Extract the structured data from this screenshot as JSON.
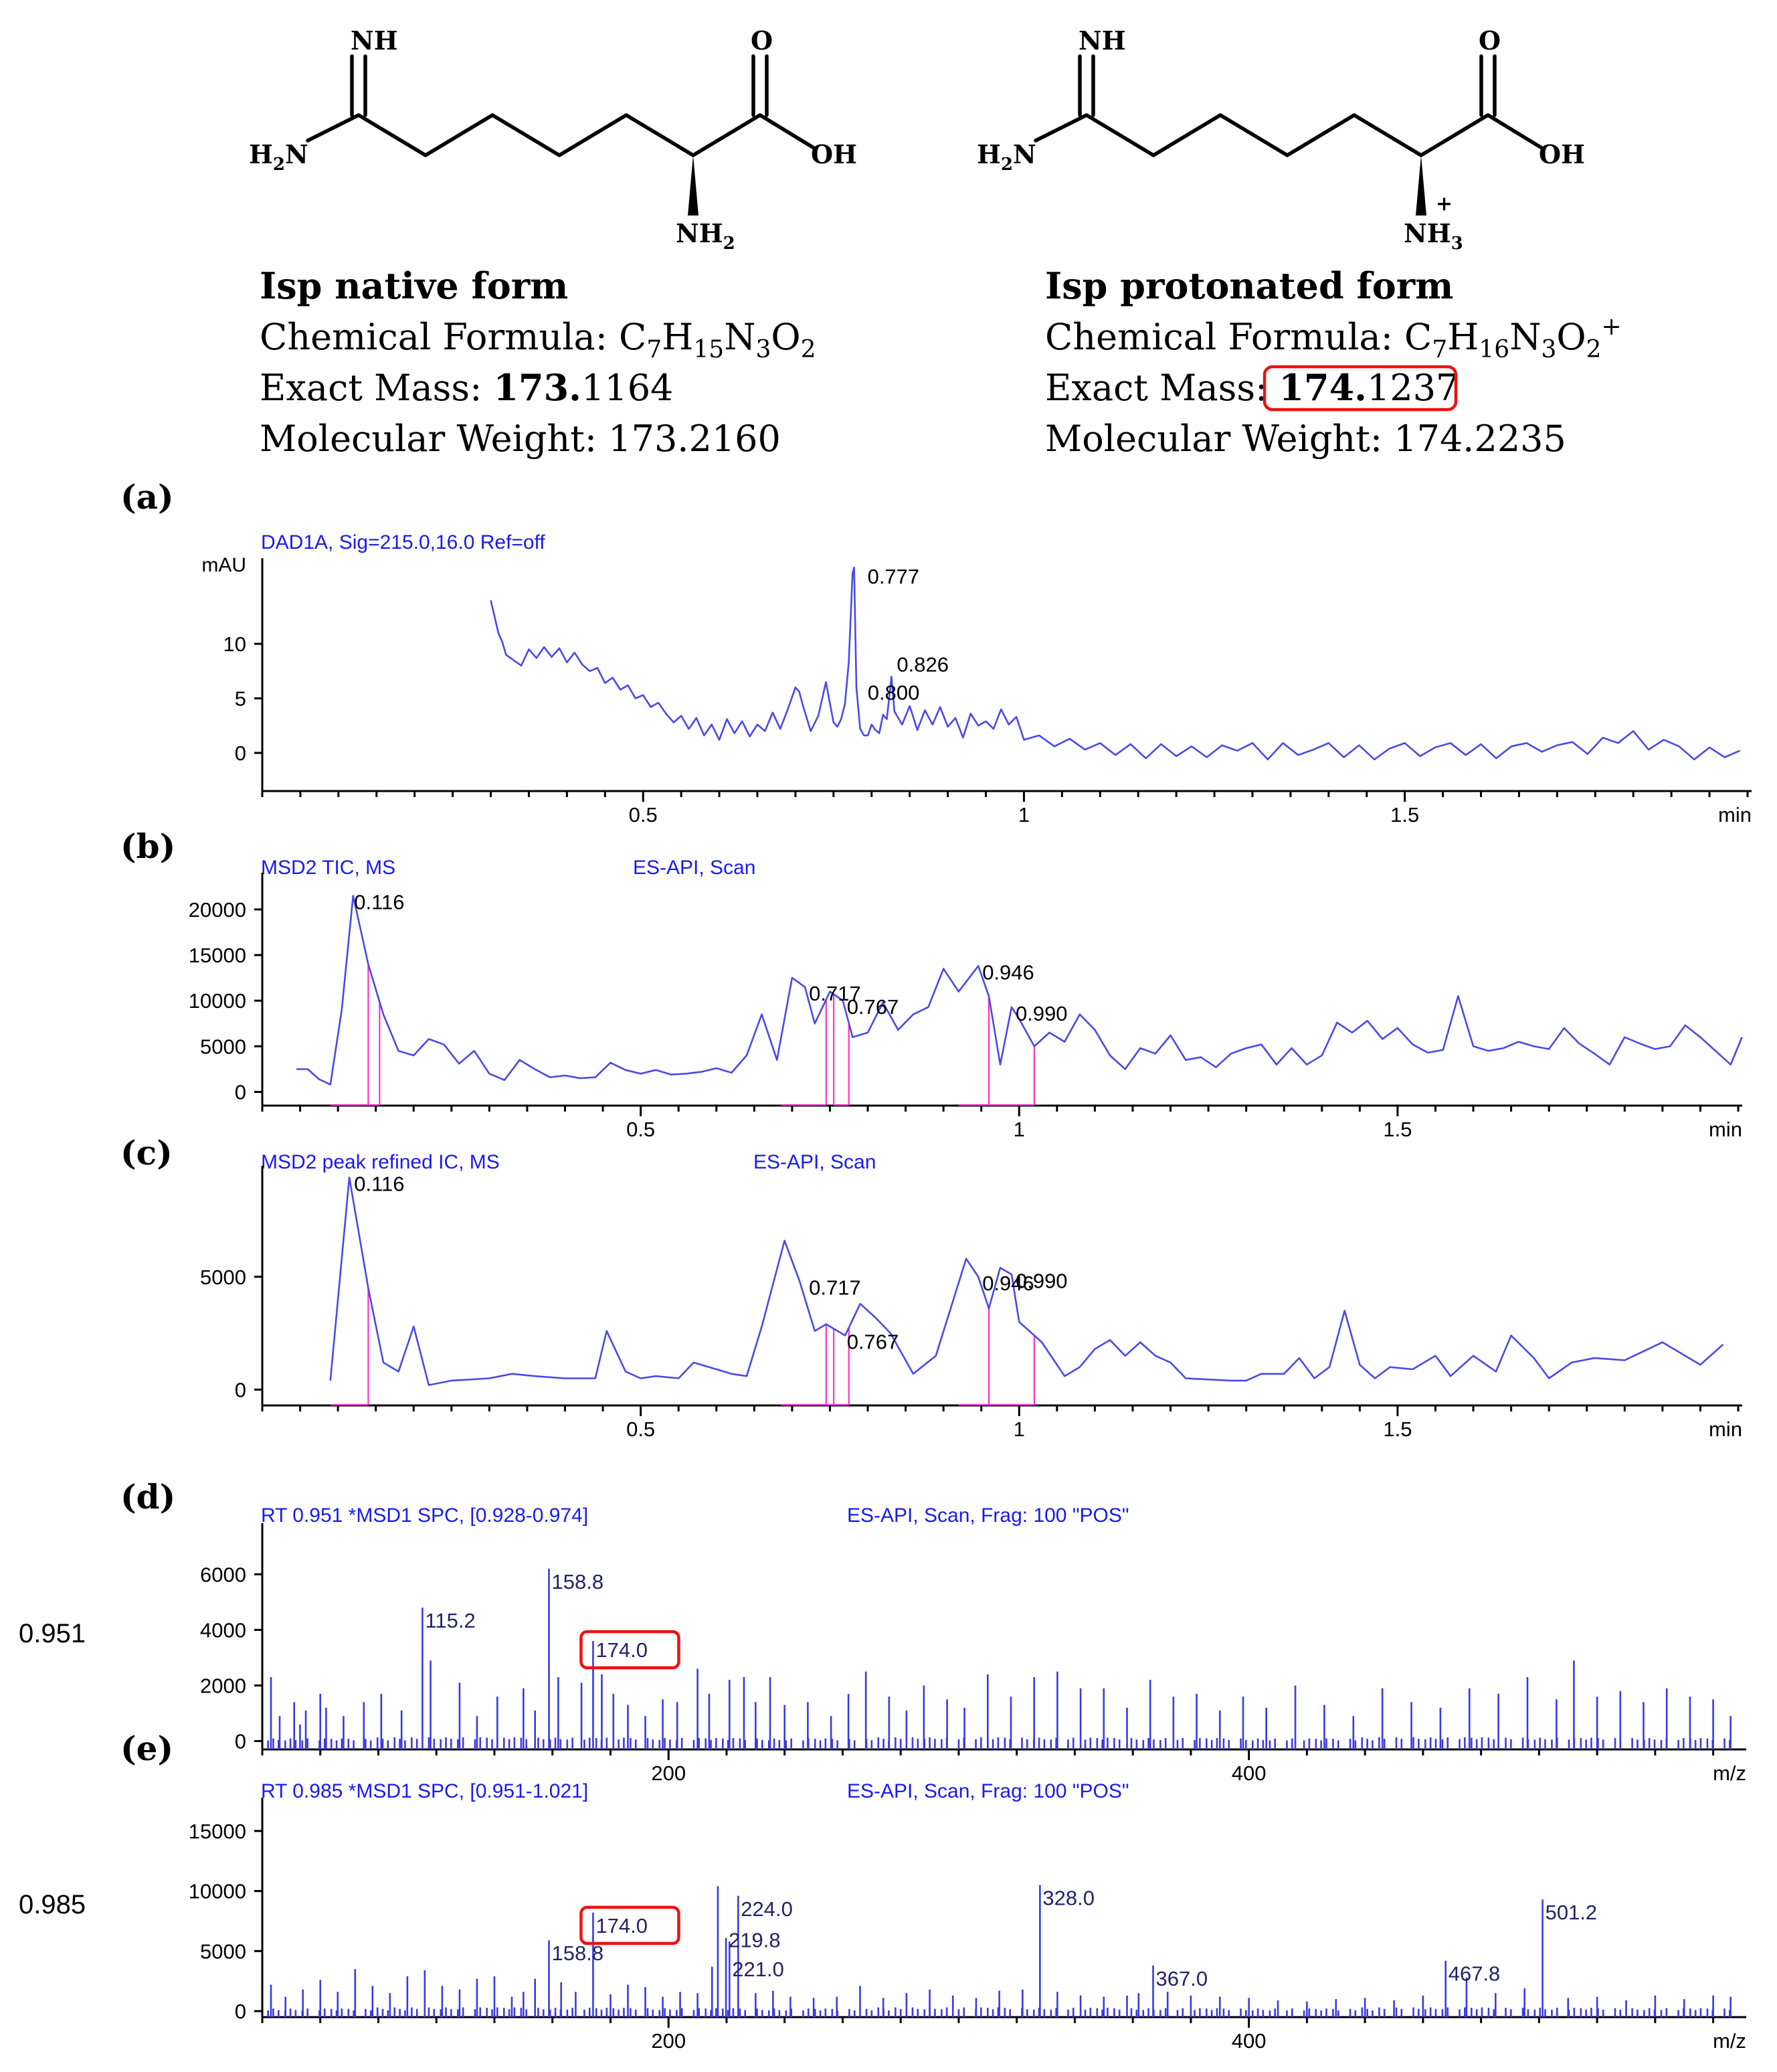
{
  "native": {
    "nh_label": "NH",
    "h2n_label": "H",
    "h2n_sub": "2",
    "h2n_n": "N",
    "o_label": "O",
    "oh_label": "OH",
    "nh2_label": "NH",
    "nh2_sub": "2",
    "title": "Isp native form",
    "formula_prefix": "Chemical Formula: ",
    "f_c": "C",
    "f_c_sub": "7",
    "f_h": "H",
    "f_h_sub": "15",
    "f_n": "N",
    "f_n_sub": "3",
    "f_o": "O",
    "f_o_sub": "2",
    "mass_prefix": "Exact Mass: ",
    "mass_bold": "173.",
    "mass_rest": "1164",
    "mw": "Molecular Weight: 173.2160"
  },
  "protonated": {
    "nh_label": "NH",
    "h2n_label": "H",
    "h2n_sub": "2",
    "h2n_n": "N",
    "o_label": "O",
    "oh_label": "OH",
    "nh3_label": "NH",
    "nh3_sub": "3",
    "plus": "+",
    "title": "Isp protonated form",
    "formula_prefix": "Chemical Formula: ",
    "f_c": "C",
    "f_c_sub": "7",
    "f_h": "H",
    "f_h_sub": "16",
    "f_n": "N",
    "f_n_sub": "3",
    "f_o": "O",
    "f_o_sub": "2",
    "f_plus": "+",
    "mass_prefix": "Exact Mass: ",
    "mass_bold": "174.",
    "mass_rest": "1237",
    "mw": "Molecular Weight: 174.2235"
  },
  "colors": {
    "trace": "#4a4ae6",
    "integration": "#ff33cc",
    "highlight": "#ee1111",
    "header": "#1a1aee"
  },
  "chart_data": [
    {
      "panel": "(a)",
      "type": "line",
      "header": "DAD1A, Sig=215.0,16.0  Ref=off",
      "ylabel": "mAU",
      "xlabel": "min",
      "xlim": [
        0,
        1.95
      ],
      "ylim": [
        -3.5,
        17
      ],
      "xticks": [
        0.5,
        1,
        1.5
      ],
      "xtick_labels": [
        "0.5",
        "1",
        "1.5"
      ],
      "yticks": [
        0,
        5,
        10
      ],
      "ytick_labels": [
        "0",
        "5",
        "10"
      ],
      "x": [
        0.3,
        0.305,
        0.31,
        0.315,
        0.32,
        0.33,
        0.34,
        0.35,
        0.36,
        0.37,
        0.38,
        0.39,
        0.4,
        0.41,
        0.42,
        0.43,
        0.44,
        0.45,
        0.46,
        0.47,
        0.48,
        0.49,
        0.5,
        0.51,
        0.52,
        0.53,
        0.54,
        0.55,
        0.56,
        0.57,
        0.58,
        0.59,
        0.6,
        0.61,
        0.62,
        0.63,
        0.64,
        0.65,
        0.66,
        0.67,
        0.68,
        0.69,
        0.7,
        0.705,
        0.71,
        0.72,
        0.73,
        0.74,
        0.75,
        0.755,
        0.76,
        0.765,
        0.77,
        0.775,
        0.777,
        0.78,
        0.785,
        0.79,
        0.795,
        0.8,
        0.805,
        0.81,
        0.815,
        0.82,
        0.826,
        0.83,
        0.84,
        0.85,
        0.86,
        0.87,
        0.88,
        0.89,
        0.9,
        0.91,
        0.92,
        0.93,
        0.94,
        0.95,
        0.96,
        0.97,
        0.98,
        0.99,
        1.0,
        1.02,
        1.04,
        1.06,
        1.08,
        1.1,
        1.12,
        1.14,
        1.16,
        1.18,
        1.2,
        1.22,
        1.24,
        1.26,
        1.28,
        1.3,
        1.32,
        1.34,
        1.36,
        1.38,
        1.4,
        1.42,
        1.44,
        1.46,
        1.48,
        1.5,
        1.52,
        1.54,
        1.56,
        1.58,
        1.6,
        1.62,
        1.64,
        1.66,
        1.68,
        1.7,
        1.72,
        1.74,
        1.76,
        1.78,
        1.8,
        1.82,
        1.84,
        1.86,
        1.88,
        1.9,
        1.92,
        1.94
      ],
      "y": [
        14,
        12.5,
        11,
        10.2,
        9,
        8.5,
        8,
        9.5,
        8.7,
        9.7,
        8.8,
        9.6,
        8.3,
        9.2,
        8.1,
        7.5,
        7.8,
        6.4,
        6.9,
        5.8,
        6.2,
        5,
        5.3,
        4.2,
        4.6,
        3.6,
        2.8,
        3.4,
        2.2,
        3.2,
        1.6,
        2.6,
        1.2,
        3.1,
        1.8,
        2.9,
        1.5,
        2.6,
        2,
        3.7,
        2.2,
        4,
        6,
        5.6,
        4.3,
        2,
        3.4,
        6.5,
        2.8,
        2.4,
        3.1,
        4.5,
        8.3,
        16.5,
        17,
        6,
        2.2,
        1.6,
        1.6,
        2.6,
        2.1,
        1.8,
        3.5,
        3.1,
        7,
        3.8,
        2.6,
        4.3,
        2.1,
        3.9,
        2.6,
        4.2,
        2.4,
        3.2,
        1.4,
        3.6,
        2.5,
        2.9,
        2.2,
        4,
        2.6,
        3.3,
        1.2,
        1.6,
        0.6,
        1.3,
        0.3,
        0.9,
        -0.2,
        0.8,
        -0.5,
        0.8,
        -0.3,
        0.6,
        -0.4,
        0.7,
        0.2,
        0.9,
        -0.6,
        0.9,
        -0.2,
        0.3,
        0.9,
        -0.4,
        0.7,
        -0.6,
        0.4,
        0.9,
        -0.3,
        0.5,
        0.9,
        -0.2,
        0.8,
        -0.5,
        0.6,
        0.9,
        0.1,
        0.7,
        1,
        -0.1,
        1.4,
        0.9,
        2,
        0.3,
        1.2,
        0.6,
        -0.6,
        0.5,
        -0.4,
        0.2
      ],
      "peak_labels": [
        {
          "rt": 0.777,
          "label": "0.777"
        },
        {
          "rt": 0.826,
          "label": "0.826"
        },
        {
          "rt": 0.8,
          "label": "0.800"
        }
      ]
    },
    {
      "panel": "(b)",
      "type": "line",
      "header": "MSD2 TIC, MS",
      "header2": "ES-API, Scan",
      "xlabel": "min",
      "xlim": [
        0,
        1.95
      ],
      "ylim": [
        -1500,
        23000
      ],
      "xticks": [
        0.5,
        1,
        1.5
      ],
      "xtick_labels": [
        "0.5",
        "1",
        "1.5"
      ],
      "yticks": [
        0,
        5000,
        10000,
        15000,
        20000
      ],
      "ytick_labels": [
        "0",
        "5000",
        "10000",
        "15000",
        "20000"
      ],
      "x": [
        0.045,
        0.06,
        0.075,
        0.09,
        0.105,
        0.12,
        0.14,
        0.16,
        0.18,
        0.2,
        0.22,
        0.24,
        0.26,
        0.28,
        0.3,
        0.32,
        0.34,
        0.36,
        0.38,
        0.4,
        0.42,
        0.44,
        0.46,
        0.48,
        0.5,
        0.52,
        0.54,
        0.56,
        0.58,
        0.6,
        0.62,
        0.64,
        0.66,
        0.68,
        0.7,
        0.717,
        0.73,
        0.75,
        0.767,
        0.78,
        0.8,
        0.82,
        0.84,
        0.86,
        0.88,
        0.9,
        0.92,
        0.946,
        0.96,
        0.975,
        0.99,
        1.0,
        1.02,
        1.04,
        1.06,
        1.08,
        1.1,
        1.12,
        1.14,
        1.16,
        1.18,
        1.2,
        1.22,
        1.24,
        1.26,
        1.28,
        1.3,
        1.32,
        1.34,
        1.36,
        1.38,
        1.4,
        1.42,
        1.44,
        1.46,
        1.48,
        1.5,
        1.52,
        1.54,
        1.56,
        1.58,
        1.6,
        1.62,
        1.64,
        1.66,
        1.68,
        1.7,
        1.72,
        1.74,
        1.76,
        1.78,
        1.8,
        1.82,
        1.84,
        1.86,
        1.88,
        1.9,
        1.92,
        1.94,
        1.955
      ],
      "y": [
        2500,
        2500,
        1400,
        800,
        9000,
        21500,
        14000,
        8500,
        4500,
        4000,
        5800,
        5200,
        3100,
        4500,
        2000,
        1300,
        3500,
        2500,
        1600,
        1800,
        1500,
        1600,
        3200,
        2400,
        2000,
        2400,
        1900,
        2000,
        2200,
        2600,
        2100,
        4000,
        8500,
        3500,
        12500,
        11500,
        7500,
        11000,
        10000,
        6000,
        6500,
        9800,
        6800,
        8500,
        9300,
        13500,
        11000,
        13800,
        10500,
        3000,
        9300,
        8000,
        5000,
        6500,
        5500,
        8500,
        6800,
        4000,
        2500,
        4800,
        4200,
        6200,
        3500,
        3800,
        2700,
        4200,
        4800,
        5200,
        3000,
        4800,
        3000,
        4000,
        7600,
        6500,
        7800,
        5800,
        7000,
        5200,
        4300,
        4600,
        10500,
        5000,
        4500,
        4800,
        5500,
        5000,
        4700,
        7000,
        5300,
        4200,
        3000,
        6000,
        5300,
        4700,
        5000,
        7300,
        6000,
        4500,
        3000,
        6000
      ],
      "peak_labels": [
        {
          "rt": 0.116,
          "label": "0.116"
        },
        {
          "rt": 0.717,
          "label": "0.717"
        },
        {
          "rt": 0.767,
          "label": "0.767"
        },
        {
          "rt": 0.946,
          "label": "0.946"
        },
        {
          "rt": 0.99,
          "label": "0.990"
        }
      ],
      "integration": [
        [
          0.09,
          0.155,
          0.14
        ],
        [
          0.685,
          0.745,
          0.745
        ],
        [
          0.755,
          0.775,
          0.755
        ],
        [
          0.92,
          0.96,
          0.96
        ],
        [
          0.96,
          1.02,
          0.96
        ]
      ]
    },
    {
      "panel": "(c)",
      "type": "line",
      "header": "MSD2 peak refined IC, MS",
      "header2": "ES-API, Scan",
      "xlabel": "min",
      "xlim": [
        0,
        1.95
      ],
      "ylim": [
        -700,
        9500
      ],
      "xticks": [
        0.5,
        1,
        1.5
      ],
      "xtick_labels": [
        "0.5",
        "1",
        "1.5"
      ],
      "yticks": [
        0,
        5000
      ],
      "ytick_labels": [
        "0",
        "5000"
      ],
      "x": [
        0.09,
        0.115,
        0.14,
        0.16,
        0.18,
        0.2,
        0.22,
        0.25,
        0.3,
        0.33,
        0.36,
        0.4,
        0.44,
        0.455,
        0.48,
        0.5,
        0.52,
        0.55,
        0.57,
        0.6,
        0.62,
        0.64,
        0.66,
        0.69,
        0.71,
        0.73,
        0.745,
        0.77,
        0.79,
        0.81,
        0.83,
        0.86,
        0.89,
        0.93,
        0.946,
        0.96,
        0.975,
        0.99,
        1.0,
        1.03,
        1.06,
        1.08,
        1.1,
        1.12,
        1.14,
        1.16,
        1.18,
        1.2,
        1.22,
        1.28,
        1.3,
        1.32,
        1.35,
        1.37,
        1.39,
        1.41,
        1.43,
        1.45,
        1.47,
        1.49,
        1.52,
        1.55,
        1.57,
        1.6,
        1.63,
        1.65,
        1.68,
        1.7,
        1.73,
        1.76,
        1.8,
        1.85,
        1.9,
        1.93
      ],
      "y": [
        400,
        9400,
        4500,
        1200,
        800,
        2800,
        200,
        400,
        500,
        700,
        600,
        500,
        500,
        2600,
        800,
        500,
        600,
        500,
        1200,
        900,
        700,
        600,
        2800,
        6600,
        4800,
        2600,
        2900,
        2400,
        3800,
        3200,
        2500,
        700,
        1500,
        5800,
        5000,
        3600,
        5400,
        5100,
        3000,
        2100,
        600,
        1000,
        1800,
        2200,
        1500,
        2100,
        1500,
        1200,
        500,
        400,
        400,
        700,
        700,
        1400,
        500,
        1000,
        3500,
        1100,
        500,
        1000,
        900,
        1500,
        600,
        1500,
        800,
        2400,
        1400,
        500,
        1200,
        1400,
        1300,
        2100,
        1100,
        2000
      ],
      "peak_labels": [
        {
          "rt": 0.116,
          "label": "0.116"
        },
        {
          "rt": 0.717,
          "label": "0.717"
        },
        {
          "rt": 0.767,
          "label": "0.767"
        },
        {
          "rt": 0.946,
          "label": "0.946"
        },
        {
          "rt": 0.99,
          "label": "0.990"
        }
      ],
      "integration": [
        [
          0.09,
          0.14,
          0.14
        ],
        [
          0.685,
          0.745,
          0.745
        ],
        [
          0.745,
          0.775,
          0.755
        ],
        [
          0.92,
          0.96,
          0.96
        ],
        [
          0.96,
          1.02,
          0.96
        ]
      ]
    },
    {
      "panel": "(d)",
      "type": "bar",
      "side_label": "0.951",
      "header": "RT 0.951 *MSD1 SPC, [0.928-0.974]",
      "header2": "ES-API, Scan, Frag: 100 \"POS\"",
      "xlabel": "m/z",
      "xlim": [
        60,
        570
      ],
      "ylim": [
        -300,
        7500
      ],
      "xticks": [
        200,
        400
      ],
      "xtick_labels": [
        "200",
        "400"
      ],
      "yticks": [
        0,
        2000,
        4000,
        6000
      ],
      "ytick_labels": [
        "0",
        "2000",
        "4000",
        "6000"
      ],
      "mz": [
        63,
        66,
        71,
        73,
        75,
        80,
        82,
        88,
        95,
        101,
        108,
        115.2,
        118,
        128,
        134,
        141,
        150,
        154,
        158.8,
        162,
        170,
        174,
        177,
        181,
        186,
        192,
        198,
        203,
        210,
        214,
        221,
        226,
        230,
        235,
        240,
        248,
        256,
        262,
        268,
        276,
        282,
        288,
        296,
        302,
        310,
        318,
        326,
        334,
        342,
        350,
        358,
        366,
        374,
        382,
        390,
        398,
        406,
        416,
        426,
        436,
        446,
        456,
        466,
        476,
        486,
        496,
        506,
        512,
        520,
        528,
        536,
        544,
        552,
        560,
        566
      ],
      "intensity": [
        2300,
        900,
        1400,
        600,
        1100,
        1700,
        1200,
        900,
        1400,
        1700,
        1100,
        4800,
        2900,
        2100,
        900,
        1600,
        1900,
        1100,
        6200,
        2300,
        2100,
        3600,
        2400,
        1700,
        1300,
        900,
        1500,
        1400,
        2600,
        1700,
        2200,
        2300,
        1400,
        2300,
        1300,
        1400,
        900,
        1700,
        2500,
        1600,
        1100,
        2000,
        1500,
        1200,
        2400,
        1600,
        2300,
        2500,
        1900,
        1900,
        1200,
        2200,
        1600,
        1700,
        1100,
        1600,
        1200,
        2000,
        1300,
        900,
        1900,
        1400,
        1200,
        1900,
        1700,
        2300,
        1500,
        2900,
        1600,
        1800,
        1400,
        1900,
        1600,
        1500,
        900
      ],
      "labels": [
        {
          "mz": 115.2,
          "text": "115.2"
        },
        {
          "mz": 158.8,
          "text": "158.8"
        },
        {
          "mz": 174.0,
          "text": "174.0",
          "highlight": true
        }
      ]
    },
    {
      "panel": "(e)",
      "type": "bar",
      "side_label": "0.985",
      "header": "RT 0.985 *MSD1 SPC, [0.951-1.021]",
      "header2": "ES-API, Scan, Frag: 100 \"POS\"",
      "xlabel": "m/z",
      "xlim": [
        60,
        570
      ],
      "ylim": [
        -500,
        17000
      ],
      "xticks": [
        200,
        400
      ],
      "xtick_labels": [
        "200",
        "400"
      ],
      "yticks": [
        0,
        5000,
        10000,
        15000
      ],
      "ytick_labels": [
        "0",
        "5000",
        "10000",
        "15000"
      ],
      "mz": [
        63,
        68,
        74,
        80,
        86,
        92,
        98,
        104,
        110,
        116,
        122,
        128,
        134,
        140,
        146,
        150,
        154,
        158.8,
        163,
        168,
        174,
        180,
        186,
        192,
        198,
        204,
        210,
        215,
        217,
        219.8,
        221,
        224,
        230,
        236,
        242,
        250,
        258,
        266,
        274,
        282,
        290,
        298,
        306,
        314,
        322,
        328,
        334,
        342,
        350,
        358,
        362,
        367,
        372,
        380,
        390,
        400,
        410,
        420,
        430,
        440,
        450,
        460,
        467.8,
        475,
        485,
        495,
        501.2,
        510,
        520,
        530,
        540,
        550,
        560,
        566
      ],
      "intensity": [
        2200,
        1200,
        1800,
        2600,
        1600,
        3500,
        2100,
        1500,
        2900,
        3400,
        2100,
        1800,
        2700,
        2900,
        1200,
        1600,
        2700,
        5900,
        2400,
        1600,
        8200,
        1400,
        2200,
        2000,
        1200,
        1600,
        1500,
        3700,
        10400,
        6100,
        5800,
        9600,
        1500,
        1700,
        1200,
        1100,
        1200,
        2100,
        1100,
        1500,
        1800,
        1300,
        1100,
        1700,
        1800,
        10500,
        1600,
        1300,
        1200,
        1300,
        1500,
        3800,
        1600,
        1300,
        1200,
        1100,
        900,
        800,
        1000,
        1100,
        900,
        1300,
        4200,
        2800,
        1500,
        1900,
        9300,
        1100,
        1200,
        900,
        1300,
        1000,
        1300,
        1200
      ],
      "labels": [
        {
          "mz": 158.8,
          "text": "158.8"
        },
        {
          "mz": 174.0,
          "text": "174.0",
          "highlight": true
        },
        {
          "mz": 224.0,
          "text": "224.0"
        },
        {
          "mz": 219.8,
          "text": "219.8"
        },
        {
          "mz": 221.0,
          "text": "221.0"
        },
        {
          "mz": 328.0,
          "text": "328.0"
        },
        {
          "mz": 367.0,
          "text": "367.0"
        },
        {
          "mz": 467.8,
          "text": "467.8"
        },
        {
          "mz": 501.2,
          "text": "501.2"
        }
      ]
    }
  ]
}
